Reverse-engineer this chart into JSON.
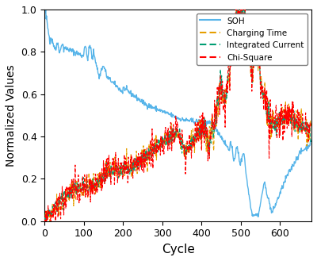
{
  "title": "",
  "xlabel": "Cycle",
  "ylabel": "Normalized Values",
  "xlim": [
    0,
    680
  ],
  "ylim": [
    0.0,
    1.0
  ],
  "xticks": [
    0,
    100,
    200,
    300,
    400,
    500,
    600
  ],
  "yticks": [
    0.0,
    0.2,
    0.4,
    0.6,
    0.8,
    1.0
  ],
  "soh_color": "#56B4E9",
  "charging_color": "#E69F00",
  "integrated_color": "#009E73",
  "chisquare_color": "#FF0000",
  "legend_labels": [
    "SOH",
    "Charging Time",
    "Integrated Current",
    "Chi-Square"
  ],
  "n_cycles": 680,
  "seed": 42
}
